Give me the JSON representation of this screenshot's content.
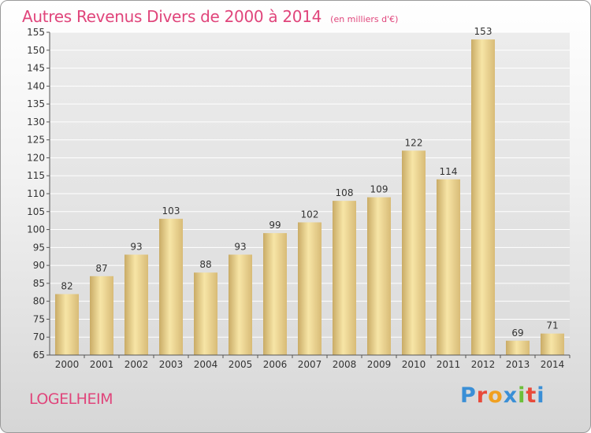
{
  "header": {
    "title": "Autres Revenus Divers de 2000 à 2014",
    "unit": "(en milliers d'€)"
  },
  "footer": {
    "city": "LOGELHEIM",
    "brand_letters": [
      "P",
      "r",
      "o",
      "x",
      "i",
      "t",
      "i"
    ],
    "brand_colors": [
      "#3a8fd6",
      "#e84a3a",
      "#f0a020",
      "#3a8fd6",
      "#6cbf3a",
      "#e84a3a",
      "#3a8fd6"
    ]
  },
  "colors": {
    "title": "#e0457b",
    "bar_light": "#f6e2a0",
    "bar_dark": "#c7a865",
    "grid": "#ffffff",
    "axis": "#555555",
    "text": "#333333"
  },
  "chart_data": {
    "type": "bar",
    "title": "Autres Revenus Divers de 2000 à 2014",
    "subtitle": "(en milliers d'€)",
    "categories": [
      "2000",
      "2001",
      "2002",
      "2003",
      "2004",
      "2005",
      "2006",
      "2007",
      "2008",
      "2009",
      "2010",
      "2011",
      "2012",
      "2013",
      "2014"
    ],
    "values": [
      82,
      87,
      93,
      103,
      88,
      93,
      99,
      102,
      108,
      109,
      122,
      114,
      153,
      69,
      71
    ],
    "ylim": [
      65,
      155
    ],
    "yticks": [
      65,
      70,
      75,
      80,
      85,
      90,
      95,
      100,
      105,
      110,
      115,
      120,
      125,
      130,
      135,
      140,
      145,
      150,
      155
    ],
    "grid": true,
    "xlabel": "",
    "ylabel": ""
  }
}
